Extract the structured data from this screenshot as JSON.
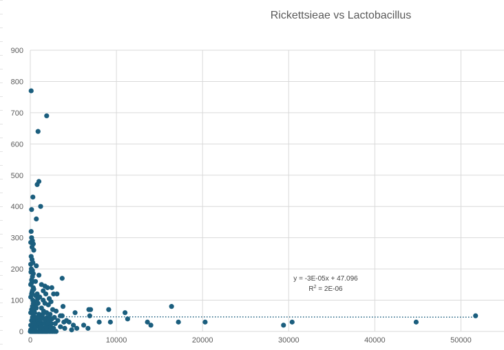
{
  "chart_data": {
    "type": "scatter",
    "title": "Rickettsieae vs  Lactobacillus",
    "xlabel": "",
    "ylabel": "",
    "xlim": [
      0,
      55000
    ],
    "ylim": [
      0,
      900
    ],
    "x_ticks": [
      0,
      10000,
      20000,
      30000,
      40000,
      50000
    ],
    "y_ticks": [
      0,
      100,
      200,
      300,
      400,
      500,
      600,
      700,
      800,
      900
    ],
    "grid": true,
    "legend": "none",
    "marker_color": "#1b5e7e",
    "trendline": {
      "style": "dotted",
      "slope": -3e-05,
      "intercept": 47.096,
      "equation_label": "y = -3E-05x + 47.096",
      "r2_prefix": "R",
      "r2_sup": "2",
      "r2_suffix": " = 2E-06"
    },
    "points": [
      [
        100,
        770
      ],
      [
        1900,
        690
      ],
      [
        900,
        640
      ],
      [
        1000,
        480
      ],
      [
        800,
        470
      ],
      [
        300,
        430
      ],
      [
        1200,
        400
      ],
      [
        150,
        390
      ],
      [
        700,
        360
      ],
      [
        100,
        320
      ],
      [
        150,
        300
      ],
      [
        250,
        290
      ],
      [
        50,
        285
      ],
      [
        350,
        280
      ],
      [
        200,
        270
      ],
      [
        400,
        260
      ],
      [
        100,
        240
      ],
      [
        200,
        230
      ],
      [
        300,
        220
      ],
      [
        50,
        215
      ],
      [
        700,
        210
      ],
      [
        120,
        200
      ],
      [
        250,
        195
      ],
      [
        80,
        190
      ],
      [
        1000,
        180
      ],
      [
        3700,
        170
      ],
      [
        600,
        160
      ],
      [
        150,
        155
      ],
      [
        1300,
        150
      ],
      [
        1700,
        145
      ],
      [
        2000,
        140
      ],
      [
        2500,
        140
      ],
      [
        400,
        135
      ],
      [
        1500,
        130
      ],
      [
        200,
        125
      ],
      [
        800,
        120
      ],
      [
        1800,
        120
      ],
      [
        2700,
        120
      ],
      [
        3100,
        120
      ],
      [
        600,
        115
      ],
      [
        1100,
        110
      ],
      [
        2200,
        105
      ],
      [
        300,
        100
      ],
      [
        1500,
        100
      ],
      [
        2400,
        95
      ],
      [
        900,
        90
      ],
      [
        1700,
        90
      ],
      [
        2100,
        85
      ],
      [
        3800,
        80
      ],
      [
        16400,
        80
      ],
      [
        700,
        75
      ],
      [
        1300,
        75
      ],
      [
        2600,
        70
      ],
      [
        6800,
        70
      ],
      [
        7000,
        70
      ],
      [
        9100,
        70
      ],
      [
        3000,
        65
      ],
      [
        500,
        60
      ],
      [
        1900,
        60
      ],
      [
        5200,
        60
      ],
      [
        11000,
        60
      ],
      [
        1000,
        55
      ],
      [
        2300,
        55
      ],
      [
        400,
        50
      ],
      [
        1200,
        50
      ],
      [
        3500,
        50
      ],
      [
        3700,
        50
      ],
      [
        6900,
        50
      ],
      [
        51700,
        50
      ],
      [
        800,
        45
      ],
      [
        2800,
        45
      ],
      [
        1600,
        40
      ],
      [
        2500,
        40
      ],
      [
        11300,
        40
      ],
      [
        3200,
        35
      ],
      [
        4200,
        35
      ],
      [
        600,
        30
      ],
      [
        3900,
        30
      ],
      [
        4500,
        30
      ],
      [
        8000,
        30
      ],
      [
        9300,
        30
      ],
      [
        13600,
        30
      ],
      [
        17200,
        30
      ],
      [
        20300,
        30
      ],
      [
        30400,
        30
      ],
      [
        44800,
        30
      ],
      [
        1400,
        25
      ],
      [
        2900,
        25
      ],
      [
        300,
        20
      ],
      [
        2200,
        20
      ],
      [
        5000,
        20
      ],
      [
        6200,
        20
      ],
      [
        14000,
        20
      ],
      [
        29400,
        20
      ],
      [
        1000,
        15
      ],
      [
        3500,
        15
      ],
      [
        200,
        10
      ],
      [
        1600,
        10
      ],
      [
        2700,
        10
      ],
      [
        4000,
        10
      ],
      [
        5400,
        10
      ],
      [
        6700,
        10
      ],
      [
        500,
        8
      ],
      [
        1100,
        5
      ],
      [
        2000,
        5
      ],
      [
        2500,
        5
      ],
      [
        4800,
        5
      ],
      [
        50,
        5
      ],
      [
        0,
        0
      ],
      [
        100,
        0
      ],
      [
        200,
        0
      ],
      [
        300,
        0
      ],
      [
        400,
        0
      ],
      [
        500,
        0
      ],
      [
        600,
        0
      ],
      [
        700,
        0
      ],
      [
        800,
        0
      ],
      [
        900,
        0
      ],
      [
        1000,
        0
      ],
      [
        1100,
        0
      ],
      [
        1200,
        0
      ],
      [
        1300,
        0
      ],
      [
        1400,
        0
      ],
      [
        1500,
        0
      ],
      [
        1600,
        0
      ],
      [
        1700,
        0
      ],
      [
        1800,
        0
      ],
      [
        1900,
        0
      ],
      [
        2000,
        0
      ],
      [
        2200,
        0
      ],
      [
        2400,
        0
      ],
      [
        2600,
        0
      ],
      [
        2800,
        0
      ],
      [
        3000,
        0
      ],
      [
        50,
        20
      ],
      [
        150,
        35
      ],
      [
        250,
        45
      ],
      [
        350,
        55
      ],
      [
        450,
        65
      ],
      [
        550,
        75
      ],
      [
        650,
        85
      ],
      [
        750,
        95
      ],
      [
        850,
        105
      ],
      [
        50,
        110
      ],
      [
        150,
        120
      ],
      [
        250,
        130
      ],
      [
        350,
        140
      ],
      [
        50,
        150
      ],
      [
        150,
        165
      ],
      [
        250,
        175
      ],
      [
        350,
        185
      ],
      [
        50,
        60
      ],
      [
        150,
        70
      ],
      [
        250,
        80
      ],
      [
        350,
        90
      ],
      [
        450,
        25
      ],
      [
        550,
        35
      ],
      [
        650,
        15
      ],
      [
        750,
        25
      ],
      [
        850,
        35
      ],
      [
        950,
        45
      ],
      [
        1050,
        25
      ],
      [
        1150,
        35
      ],
      [
        1250,
        15
      ],
      [
        1350,
        45
      ],
      [
        1450,
        55
      ],
      [
        1550,
        65
      ],
      [
        1650,
        25
      ],
      [
        1750,
        35
      ],
      [
        1850,
        15
      ],
      [
        1950,
        45
      ],
      [
        2050,
        25
      ],
      [
        2150,
        35
      ],
      [
        2250,
        45
      ],
      [
        2350,
        15
      ],
      [
        2450,
        25
      ]
    ]
  }
}
